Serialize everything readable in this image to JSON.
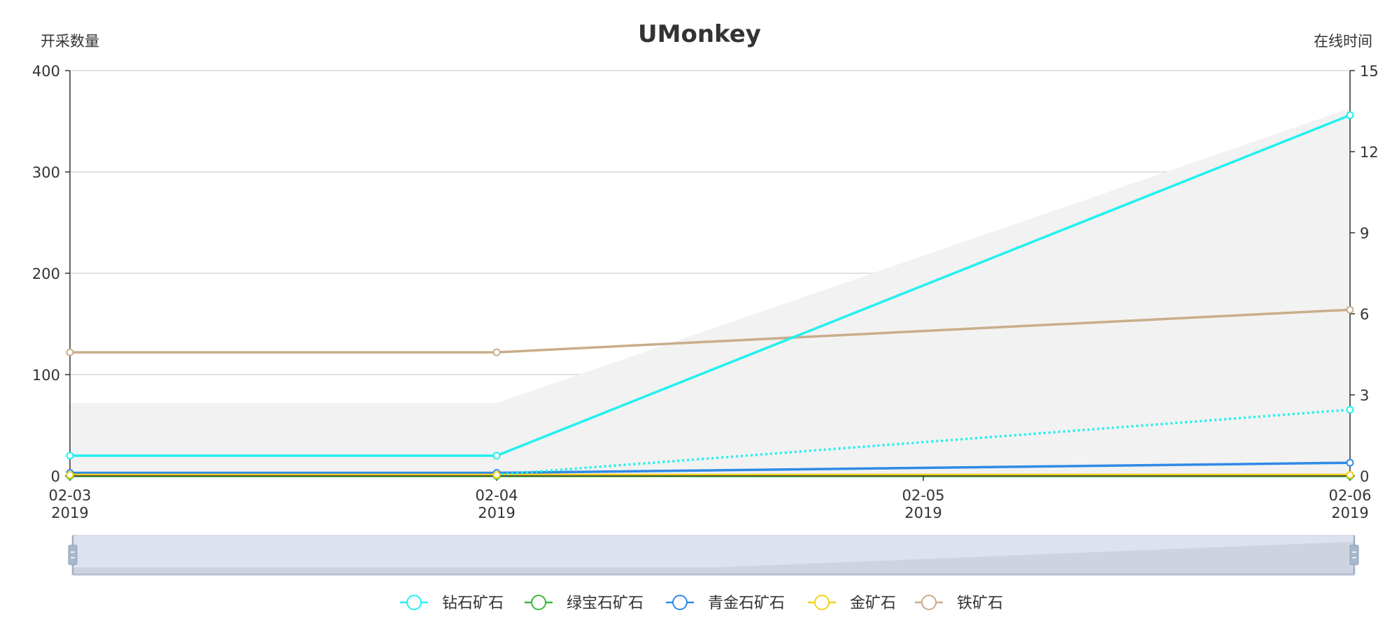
{
  "chart_data": {
    "type": "line",
    "title": "UMonkey",
    "ylabel_left": "开采数量",
    "ylabel_right": "在线时间",
    "ylim_left": [
      0,
      400
    ],
    "ylim_right": [
      0,
      15
    ],
    "yticks_left": [
      "0",
      "100",
      "200",
      "300",
      "400"
    ],
    "yticks_right": [
      "0",
      "3",
      "6",
      "9",
      "12",
      "15"
    ],
    "x_domain": [
      "2019-02-03",
      "2019-02-06"
    ],
    "x_ticks": [
      {
        "date": "2019-02-03",
        "line1": "02-03",
        "line2": "2019"
      },
      {
        "date": "2019-02-04",
        "line1": "02-04",
        "line2": "2019"
      },
      {
        "date": "2019-02-05",
        "line1": "02-05",
        "line2": "2019"
      },
      {
        "date": "2019-02-06",
        "line1": "02-06",
        "line2": "2019"
      }
    ],
    "series": [
      {
        "name": "钻石矿石",
        "color": "#22f0f0",
        "points": [
          [
            "2019-02-03",
            20
          ],
          [
            "2019-02-04",
            20
          ],
          [
            "2019-02-06",
            356
          ]
        ]
      },
      {
        "name": "绿宝石矿石",
        "color": "#3cb83c",
        "points": [
          [
            "2019-02-03",
            0
          ],
          [
            "2019-02-04",
            0
          ],
          [
            "2019-02-06",
            0
          ]
        ]
      },
      {
        "name": "青金石矿石",
        "color": "#2f8ae6",
        "points": [
          [
            "2019-02-03",
            3
          ],
          [
            "2019-02-04",
            3
          ],
          [
            "2019-02-06",
            13
          ]
        ]
      },
      {
        "name": "金矿石",
        "color": "#f3d21c",
        "points": [
          [
            "2019-02-03",
            1
          ],
          [
            "2019-02-04",
            1
          ],
          [
            "2019-02-06",
            1
          ]
        ]
      },
      {
        "name": "铁矿石",
        "color": "#c9ad8b",
        "points": [
          [
            "2019-02-03",
            122
          ],
          [
            "2019-02-04",
            122
          ],
          [
            "2019-02-06",
            164
          ]
        ]
      }
    ],
    "right_axis_series": [
      {
        "type": "area",
        "color": "#f2f2f2",
        "points": [
          [
            "2019-02-03",
            2.7
          ],
          [
            "2019-02-04",
            2.7
          ],
          [
            "2019-02-06",
            13.6
          ]
        ]
      },
      {
        "type": "dotted-line",
        "color": "#22f0f0",
        "points": [
          [
            "2019-02-04",
            0.05
          ],
          [
            "2019-02-06",
            2.45
          ]
        ]
      }
    ],
    "legend_position": "bottom",
    "grid": true,
    "data_zoom": {
      "range": [
        0,
        1
      ]
    }
  }
}
